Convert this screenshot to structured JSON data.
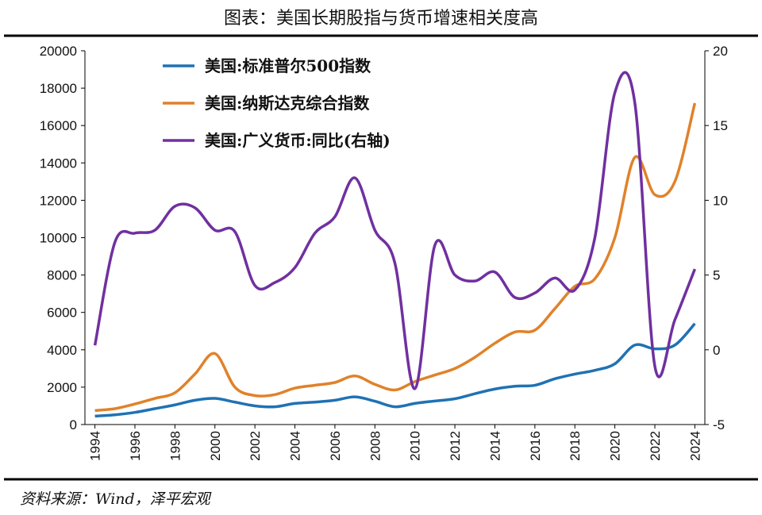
{
  "chart_data": {
    "type": "line",
    "title": "图表：美国长期股指与货币增速相关度高",
    "source": "资料来源：Wind，泽平宏观",
    "x": [
      1994,
      1995,
      1996,
      1997,
      1998,
      1999,
      2000,
      2001,
      2002,
      2003,
      2004,
      2005,
      2006,
      2007,
      2008,
      2009,
      2010,
      2011,
      2012,
      2013,
      2014,
      2015,
      2016,
      2017,
      2018,
      2019,
      2020,
      2021,
      2022,
      2023,
      2024
    ],
    "xlim": [
      1993.5,
      2024.5
    ],
    "xticks": [
      1994,
      1996,
      1998,
      2000,
      2002,
      2004,
      2006,
      2008,
      2010,
      2012,
      2014,
      2016,
      2018,
      2020,
      2022,
      2024
    ],
    "ylim": [
      0,
      20000
    ],
    "yticks": [
      0,
      2000,
      4000,
      6000,
      8000,
      10000,
      12000,
      14000,
      16000,
      18000,
      20000
    ],
    "y2lim": [
      -5,
      20
    ],
    "y2ticks": [
      -5,
      0,
      5,
      10,
      15,
      20
    ],
    "legend": "upper left",
    "series": [
      {
        "name": "美国:标准普尔500指数",
        "color": "#1f72b4",
        "values": [
          450,
          520,
          650,
          850,
          1050,
          1300,
          1400,
          1200,
          1000,
          950,
          1130,
          1200,
          1300,
          1480,
          1250,
          950,
          1130,
          1260,
          1380,
          1650,
          1900,
          2050,
          2100,
          2450,
          2700,
          2900,
          3250,
          4250,
          4050,
          4250,
          5400
        ]
      },
      {
        "name": "美国:纳斯达克综合指数",
        "color": "#e0822a",
        "values": [
          750,
          850,
          1100,
          1400,
          1700,
          2700,
          3800,
          2000,
          1550,
          1600,
          1950,
          2100,
          2250,
          2600,
          2150,
          1850,
          2300,
          2650,
          3000,
          3600,
          4350,
          4950,
          5050,
          6200,
          7400,
          7800,
          10000,
          14300,
          12300,
          13000,
          17200
        ]
      },
      {
        "name": "美国:广义货币:同比(右轴)",
        "color": "#7030a0",
        "axis": "y2",
        "values": [
          0.3,
          7.2,
          7.8,
          8.0,
          9.6,
          9.5,
          8.0,
          7.9,
          4.3,
          4.5,
          5.5,
          7.8,
          8.9,
          11.5,
          8.0,
          5.8,
          -2.6,
          7.0,
          5.0,
          4.6,
          5.2,
          3.5,
          3.8,
          4.8,
          4.0,
          7.5,
          17.2,
          16.5,
          -1.1,
          2.0,
          5.4
        ]
      }
    ]
  }
}
